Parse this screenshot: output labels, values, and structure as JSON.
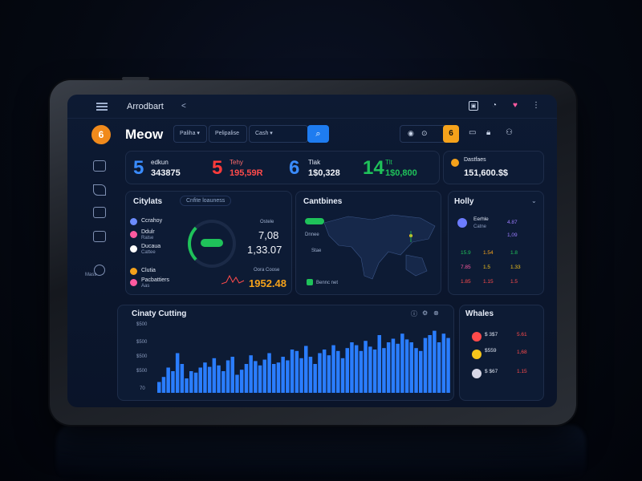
{
  "topbar": {
    "title": "Arrodbart",
    "caret": "<",
    "icons": [
      "badge-icon",
      "bell-icon",
      "heart-icon",
      "more-icon"
    ]
  },
  "brand": {
    "name": "Meow",
    "logo_letter": "6"
  },
  "filters": [
    {
      "label": "Paliha ▾"
    },
    {
      "label": "Pelipalise"
    },
    {
      "label": "Cash ▾"
    }
  ],
  "toolbar": {
    "orange_label": "6"
  },
  "stats": [
    {
      "num": "5",
      "label": "edkun",
      "value": "343875",
      "color": "#3a8cff"
    },
    {
      "num": "5",
      "label": "Tehy",
      "value": "195,59R",
      "color": "#ff3b3b"
    },
    {
      "num": "6",
      "label": "Tlak",
      "value": "1$0,328",
      "color": "#3a8cff"
    },
    {
      "num": "14",
      "label": "Tlt",
      "value": "1$0,800",
      "color": "#1fc25a"
    }
  ],
  "balance": {
    "label": "Dastfaes",
    "value": "151,600.$$"
  },
  "city_panel": {
    "title": "Citylats",
    "chip": "Cnfite loauness",
    "rows": [
      {
        "name": "Ccrahoy",
        "sub": "",
        "color": "#6c8cff"
      },
      {
        "name": "Ddulr",
        "sub": "Ralse",
        "color": "#ff5aa0"
      },
      {
        "name": "Ducaua",
        "sub": "Cattee",
        "color": "#ffffff"
      },
      {
        "name": "Clutia",
        "sub": "",
        "color": "#f5a21b"
      },
      {
        "name": "Pacbattiers",
        "sub": "Aas",
        "color": "#ff5aa0"
      }
    ],
    "values": {
      "label": "Ostele",
      "v1": "7,08",
      "v2": "1,33.07",
      "v3": "1952.48"
    },
    "right_label": "Oora Coose"
  },
  "map_panel": {
    "title": "Cantbines",
    "legend": [
      "Dnnee",
      "Stae",
      "Bennc net"
    ]
  },
  "holdings": {
    "title": "Holly",
    "rows": [
      {
        "name": "Eerhle",
        "sub": "Catne",
        "v1": "4.87",
        "v2": "1,09"
      },
      {
        "name": "15.9",
        "sub": "",
        "v1": "1.54",
        "v2": "1.8"
      },
      {
        "name": "7.85",
        "sub": "",
        "v1": "1.5",
        "v2": "1.33"
      },
      {
        "name": "1.85",
        "sub": "",
        "v1": "1.15",
        "v2": "1.5"
      }
    ]
  },
  "chart_panel": {
    "title": "Cinaty Cutting",
    "y_ticks": [
      "$500",
      "$500",
      "$500",
      "$500",
      "70"
    ]
  },
  "chart_data": {
    "type": "bar",
    "values": [
      15,
      22,
      35,
      30,
      55,
      40,
      20,
      30,
      28,
      35,
      42,
      36,
      48,
      38,
      30,
      45,
      50,
      25,
      32,
      40,
      52,
      44,
      38,
      46,
      55,
      40,
      42,
      50,
      45,
      60,
      58,
      48,
      65,
      50,
      40,
      55,
      60,
      52,
      66,
      58,
      48,
      62,
      70,
      66,
      58,
      72,
      64,
      60,
      80,
      62,
      70,
      75,
      68,
      82,
      74,
      70,
      62,
      58,
      76,
      80,
      86,
      70,
      82,
      76
    ]
  },
  "watchlist": {
    "title": "Whales",
    "rows": [
      {
        "name": "$ 3$7",
        "v1": "5.61",
        "color": "#ff4b4b"
      },
      {
        "name": "$559",
        "v1": "1,68",
        "color": "#f5c51b"
      },
      {
        "name": "$ $67",
        "v1": "1.15",
        "color": "#d8d8e8"
      }
    ]
  }
}
